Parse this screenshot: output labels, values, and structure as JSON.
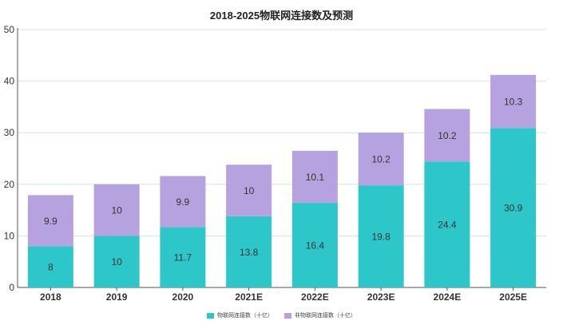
{
  "chart_data": {
    "type": "bar",
    "stacked": true,
    "title": "2018-2025物联网连接数及预测",
    "xlabel": "",
    "ylabel": "",
    "ylim": [
      0,
      50
    ],
    "yticks": [
      0,
      10,
      20,
      30,
      40,
      50
    ],
    "grid": true,
    "legend_position": "bottom",
    "categories": [
      "2018",
      "2019",
      "2020",
      "2021E",
      "2022E",
      "2023E",
      "2024E",
      "2025E"
    ],
    "series": [
      {
        "name": "物联网连接数（十亿）",
        "color": "#2ec7c9",
        "values": [
          8,
          10,
          11.7,
          13.8,
          16.4,
          19.8,
          24.4,
          30.9
        ]
      },
      {
        "name": "非物联网连接数（十亿）",
        "color": "#b6a2de",
        "values": [
          9.9,
          10,
          9.9,
          10,
          10.1,
          10.2,
          10.2,
          10.3
        ]
      }
    ]
  }
}
